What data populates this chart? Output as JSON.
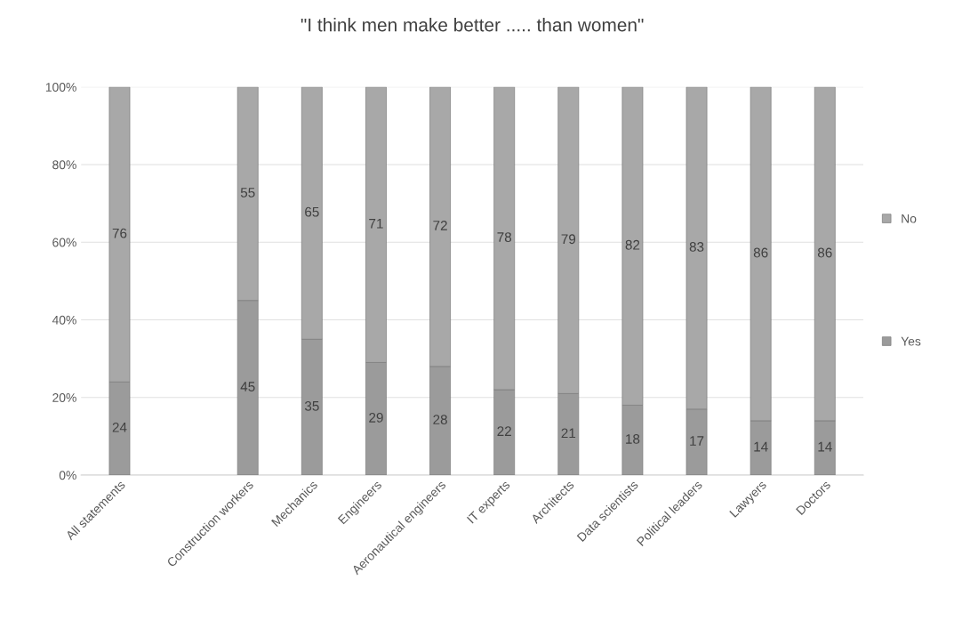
{
  "chart_data": {
    "type": "bar",
    "title": "\"I think men make better ..... than women\"",
    "categories": [
      "All statements",
      null,
      "Construction workers",
      "Mechanics",
      "Engineers",
      "Aeronautical engineers",
      "IT experts",
      "Architects",
      "Data scientists",
      "Political leaders",
      "Lawyers",
      "Doctors"
    ],
    "series": [
      {
        "name": "Yes",
        "color": "#9b9b9b",
        "values": [
          24,
          null,
          45,
          35,
          29,
          28,
          22,
          21,
          18,
          17,
          14,
          14
        ]
      },
      {
        "name": "No",
        "color": "#a8a8a8",
        "values": [
          76,
          null,
          55,
          65,
          71,
          72,
          78,
          79,
          82,
          83,
          86,
          86
        ]
      }
    ],
    "stacked": true,
    "data_labels": true,
    "ylim": [
      0,
      100
    ],
    "yticks": [
      {
        "value": 0,
        "label": "0%"
      },
      {
        "value": 20,
        "label": "20%"
      },
      {
        "value": 40,
        "label": "40%"
      },
      {
        "value": 60,
        "label": "60%"
      },
      {
        "value": 80,
        "label": "80%"
      },
      {
        "value": 100,
        "label": "100%"
      }
    ],
    "grid": "y",
    "legend": "right"
  }
}
